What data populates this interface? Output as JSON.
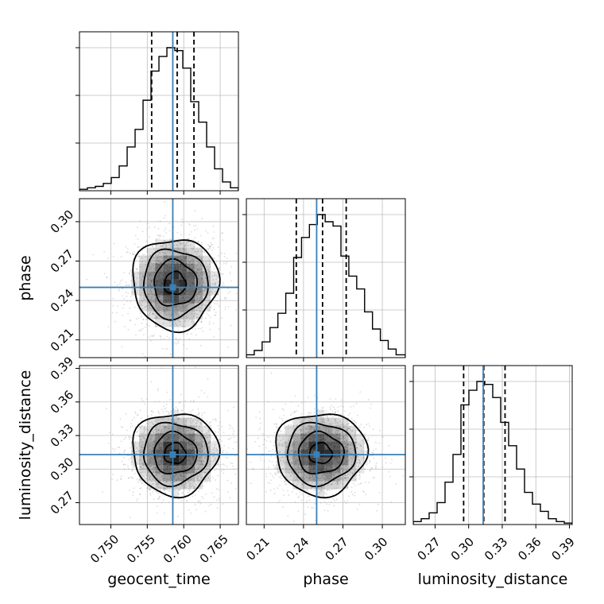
{
  "chart_data": {
    "type": "corner",
    "parameters": [
      "geocent_time",
      "phase",
      "luminosity_distance"
    ],
    "truths": {
      "geocent_time": 0.7585,
      "phase": 0.25,
      "luminosity_distance": 0.313
    },
    "quantiles": {
      "geocent_time": [
        0.7556,
        0.7591,
        0.7614
      ],
      "phase": [
        0.2345,
        0.2545,
        0.2725
      ],
      "luminosity_distance": [
        0.2955,
        0.3135,
        0.3325
      ]
    },
    "axes": {
      "geocent_time": {
        "label": "geocent_time",
        "range": [
          0.7457,
          0.7675
        ],
        "ticks": [
          0.75,
          0.755,
          0.76,
          0.765
        ],
        "tick_labels": [
          "0.750",
          "0.755",
          "0.760",
          "0.765"
        ]
      },
      "phase": {
        "label": "phase",
        "range": [
          0.1965,
          0.3175
        ],
        "ticks": [
          0.21,
          0.24,
          0.27,
          0.3
        ],
        "tick_labels": [
          "0.21",
          "0.24",
          "0.27",
          "0.30"
        ]
      },
      "luminosity_distance": {
        "label": "luminosity_distance",
        "range": [
          0.2505,
          0.3925
        ],
        "ticks": [
          0.27,
          0.3,
          0.33,
          0.36,
          0.39
        ],
        "tick_labels": [
          "0.27",
          "0.30",
          "0.33",
          "0.36",
          "0.39"
        ]
      }
    },
    "histograms": {
      "geocent_time": {
        "bin_edges": [
          0.7457,
          0.74679,
          0.74788,
          0.74897,
          0.75006,
          0.75115,
          0.75224,
          0.75333,
          0.75442,
          0.75551,
          0.7566,
          0.75769,
          0.75878,
          0.75987,
          0.76096,
          0.76205,
          0.76314,
          0.76423,
          0.76532,
          0.76641,
          0.7675
        ],
        "counts": [
          1,
          2,
          3,
          5,
          9,
          17,
          30,
          42,
          62,
          82,
          92,
          98,
          96,
          84,
          61,
          47,
          30,
          15,
          6,
          2
        ]
      },
      "phase": {
        "bin_edges": [
          0.1965,
          0.2025,
          0.2085,
          0.2145,
          0.2205,
          0.2265,
          0.2325,
          0.2385,
          0.2445,
          0.2505,
          0.2565,
          0.2625,
          0.2685,
          0.2745,
          0.2805,
          0.2865,
          0.2925,
          0.2985,
          0.3045,
          0.3105,
          0.3175
        ],
        "counts": [
          2,
          5,
          11,
          21,
          31,
          45,
          70,
          84,
          93,
          100,
          95,
          92,
          71,
          57,
          48,
          32,
          20,
          12,
          6,
          2
        ]
      },
      "luminosity_distance": {
        "bin_edges": [
          0.2505,
          0.2576,
          0.2647,
          0.2718,
          0.2789,
          0.286,
          0.2931,
          0.3002,
          0.3073,
          0.3144,
          0.3215,
          0.3286,
          0.3357,
          0.3428,
          0.3499,
          0.357,
          0.3641,
          0.3712,
          0.3783,
          0.3854,
          0.3925
        ],
        "counts": [
          2,
          4,
          8,
          15,
          29,
          48,
          82,
          92,
          98,
          96,
          87,
          70,
          54,
          38,
          22,
          14,
          9,
          4,
          2,
          1
        ]
      }
    },
    "pairs": [
      {
        "x": "geocent_time",
        "y": "phase",
        "center": [
          0.7588,
          0.253
        ],
        "sigma": [
          0.0028,
          0.0165
        ],
        "contour_levels": [
          0.5,
          1.0,
          1.5,
          2.0
        ]
      },
      {
        "x": "geocent_time",
        "y": "luminosity_distance",
        "center": [
          0.7588,
          0.314
        ],
        "sigma": [
          0.0028,
          0.0175
        ],
        "contour_levels": [
          0.5,
          1.0,
          1.5,
          2.0
        ]
      },
      {
        "x": "phase",
        "y": "luminosity_distance",
        "center": [
          0.253,
          0.314
        ],
        "sigma": [
          0.0165,
          0.0175
        ],
        "contour_levels": [
          0.5,
          1.0,
          1.5,
          2.0
        ]
      }
    ],
    "colors": {
      "truth": "#3a7fb5",
      "hist": "#000000",
      "grid": "#bdbdbd",
      "density": "#000000"
    },
    "grid": true,
    "legend": "none"
  }
}
